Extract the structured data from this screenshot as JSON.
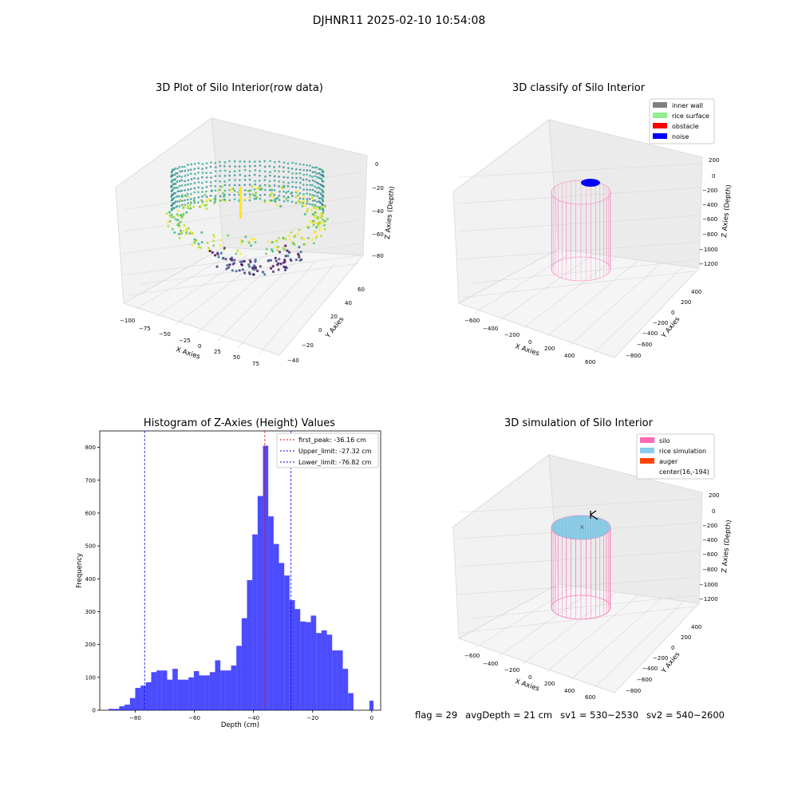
{
  "suptitle": "DJHNR11 2025-02-10 10:54:08",
  "panels": {
    "raw": {
      "title": "3D Plot of Silo Interior(row data)",
      "xlabel": "X Axies",
      "ylabel": "Y Axies",
      "zlabel": "Z Axies (Depth)",
      "xticks": [
        "−100",
        "−75",
        "−50",
        "−25",
        "0",
        "25",
        "50",
        "75"
      ],
      "yticks": [
        "60",
        "40",
        "20",
        "0",
        "−20",
        "−40"
      ],
      "zticks": [
        "0",
        "−20",
        "−40",
        "−60",
        "−80"
      ]
    },
    "classify": {
      "title": "3D classify of Silo Interior",
      "xlabel": "X Axies",
      "ylabel": "Y Axies",
      "zlabel": "Z Axies (Depth)",
      "xticks": [
        "−600",
        "−400",
        "−200",
        "0",
        "200",
        "400",
        "600"
      ],
      "yticks": [
        "400",
        "200",
        "0",
        "−200",
        "−400",
        "−600",
        "−800"
      ],
      "zticks": [
        "200",
        "0",
        "−200",
        "−400",
        "−600",
        "−800",
        "−1000",
        "−1200"
      ],
      "legend": [
        {
          "label": "inner wall",
          "color": "#808080"
        },
        {
          "label": "rice surface",
          "color": "#90ee90"
        },
        {
          "label": "obstacle",
          "color": "#ff0000"
        },
        {
          "label": "noise",
          "color": "#0000ff"
        }
      ]
    },
    "simulation": {
      "title": "3D simulation of Silo Interior",
      "xlabel": "X Axies",
      "ylabel": "Y Axies",
      "zlabel": "Z Axies (Depth)",
      "xticks": [
        "−600",
        "−400",
        "−200",
        "0",
        "200",
        "400",
        "600"
      ],
      "yticks": [
        "400",
        "200",
        "0",
        "−200",
        "−400",
        "−600",
        "−800"
      ],
      "zticks": [
        "200",
        "0",
        "−200",
        "−400",
        "−600",
        "−800",
        "−1000",
        "−1200"
      ],
      "legend": [
        {
          "label": "silo",
          "color": "#ff69b4"
        },
        {
          "label": "rice simulation",
          "color": "#87ceeb"
        },
        {
          "label": "auger",
          "color": "#ff4500"
        },
        {
          "label": "center(16,-194)",
          "color": ""
        }
      ]
    }
  },
  "chart_data": {
    "type": "bar",
    "title": "Histogram of Z-Axies (Height) Values",
    "xlabel": "Depth (cm)",
    "ylabel": "Frequency",
    "xlim": [
      -92,
      3
    ],
    "ylim": [
      0,
      850
    ],
    "xticks": [
      -80,
      -60,
      -40,
      -20,
      0
    ],
    "yticks": [
      0,
      100,
      200,
      300,
      400,
      500,
      600,
      700,
      800
    ],
    "bar_color": "#0000ff",
    "bins": [
      {
        "x0": -89.0,
        "x1": -87.2,
        "v": 4
      },
      {
        "x0": -87.2,
        "x1": -85.4,
        "v": 4
      },
      {
        "x0": -85.4,
        "x1": -83.6,
        "v": 12
      },
      {
        "x0": -83.6,
        "x1": -81.8,
        "v": 17
      },
      {
        "x0": -81.8,
        "x1": -80.0,
        "v": 37
      },
      {
        "x0": -80.0,
        "x1": -78.2,
        "v": 68
      },
      {
        "x0": -78.2,
        "x1": -76.4,
        "v": 75
      },
      {
        "x0": -76.4,
        "x1": -74.6,
        "v": 85
      },
      {
        "x0": -74.6,
        "x1": -72.8,
        "v": 116
      },
      {
        "x0": -72.8,
        "x1": -71.0,
        "v": 121
      },
      {
        "x0": -71.0,
        "x1": -69.2,
        "v": 121
      },
      {
        "x0": -69.2,
        "x1": -67.4,
        "v": 93
      },
      {
        "x0": -67.4,
        "x1": -65.6,
        "v": 126
      },
      {
        "x0": -65.6,
        "x1": -63.8,
        "v": 93
      },
      {
        "x0": -63.8,
        "x1": -62.0,
        "v": 93
      },
      {
        "x0": -62.0,
        "x1": -60.2,
        "v": 100
      },
      {
        "x0": -60.2,
        "x1": -58.4,
        "v": 119
      },
      {
        "x0": -58.4,
        "x1": -56.6,
        "v": 106
      },
      {
        "x0": -56.6,
        "x1": -54.8,
        "v": 106
      },
      {
        "x0": -54.8,
        "x1": -53.0,
        "v": 116
      },
      {
        "x0": -53.0,
        "x1": -51.2,
        "v": 152
      },
      {
        "x0": -51.2,
        "x1": -49.4,
        "v": 121
      },
      {
        "x0": -49.4,
        "x1": -47.6,
        "v": 121
      },
      {
        "x0": -47.6,
        "x1": -45.8,
        "v": 136
      },
      {
        "x0": -45.8,
        "x1": -44.0,
        "v": 196
      },
      {
        "x0": -44.0,
        "x1": -42.2,
        "v": 280
      },
      {
        "x0": -42.2,
        "x1": -40.4,
        "v": 396
      },
      {
        "x0": -40.4,
        "x1": -38.6,
        "v": 535
      },
      {
        "x0": -38.6,
        "x1": -36.8,
        "v": 652
      },
      {
        "x0": -36.8,
        "x1": -35.0,
        "v": 805
      },
      {
        "x0": -35.0,
        "x1": -33.2,
        "v": 590
      },
      {
        "x0": -33.2,
        "x1": -31.4,
        "v": 506
      },
      {
        "x0": -31.4,
        "x1": -29.6,
        "v": 448
      },
      {
        "x0": -29.6,
        "x1": -27.8,
        "v": 410
      },
      {
        "x0": -27.8,
        "x1": -26.0,
        "v": 335
      },
      {
        "x0": -26.0,
        "x1": -24.2,
        "v": 308
      },
      {
        "x0": -24.2,
        "x1": -22.4,
        "v": 270
      },
      {
        "x0": -22.4,
        "x1": -20.6,
        "v": 268
      },
      {
        "x0": -20.6,
        "x1": -18.8,
        "v": 288
      },
      {
        "x0": -18.8,
        "x1": -17.0,
        "v": 235
      },
      {
        "x0": -17.0,
        "x1": -15.2,
        "v": 243
      },
      {
        "x0": -15.2,
        "x1": -13.4,
        "v": 230
      },
      {
        "x0": -13.4,
        "x1": -11.6,
        "v": 182
      },
      {
        "x0": -11.6,
        "x1": -9.8,
        "v": 182
      },
      {
        "x0": -9.8,
        "x1": -8.0,
        "v": 126
      },
      {
        "x0": -8.0,
        "x1": -6.2,
        "v": 52
      },
      {
        "x0": -6.2,
        "x1": -4.4,
        "v": 0
      },
      {
        "x0": -4.4,
        "x1": -2.6,
        "v": 0
      },
      {
        "x0": -2.6,
        "x1": -0.8,
        "v": 0
      },
      {
        "x0": -0.8,
        "x1": 0.6,
        "v": 29
      }
    ],
    "vlines": [
      {
        "label": "first_peak: -36.16 cm",
        "x": -36.16,
        "color": "#ff0000"
      },
      {
        "label": "Upper_limit: -27.32 cm",
        "x": -27.32,
        "color": "#0000ff"
      },
      {
        "label": "Lower_limit: -76.82 cm",
        "x": -76.82,
        "color": "#0000ff"
      }
    ]
  },
  "status": {
    "flag": "flag = 29",
    "avg": "avgDepth = 21 cm",
    "sv1": "sv1 = 530~2530",
    "sv2": "sv2 = 540~2600"
  }
}
